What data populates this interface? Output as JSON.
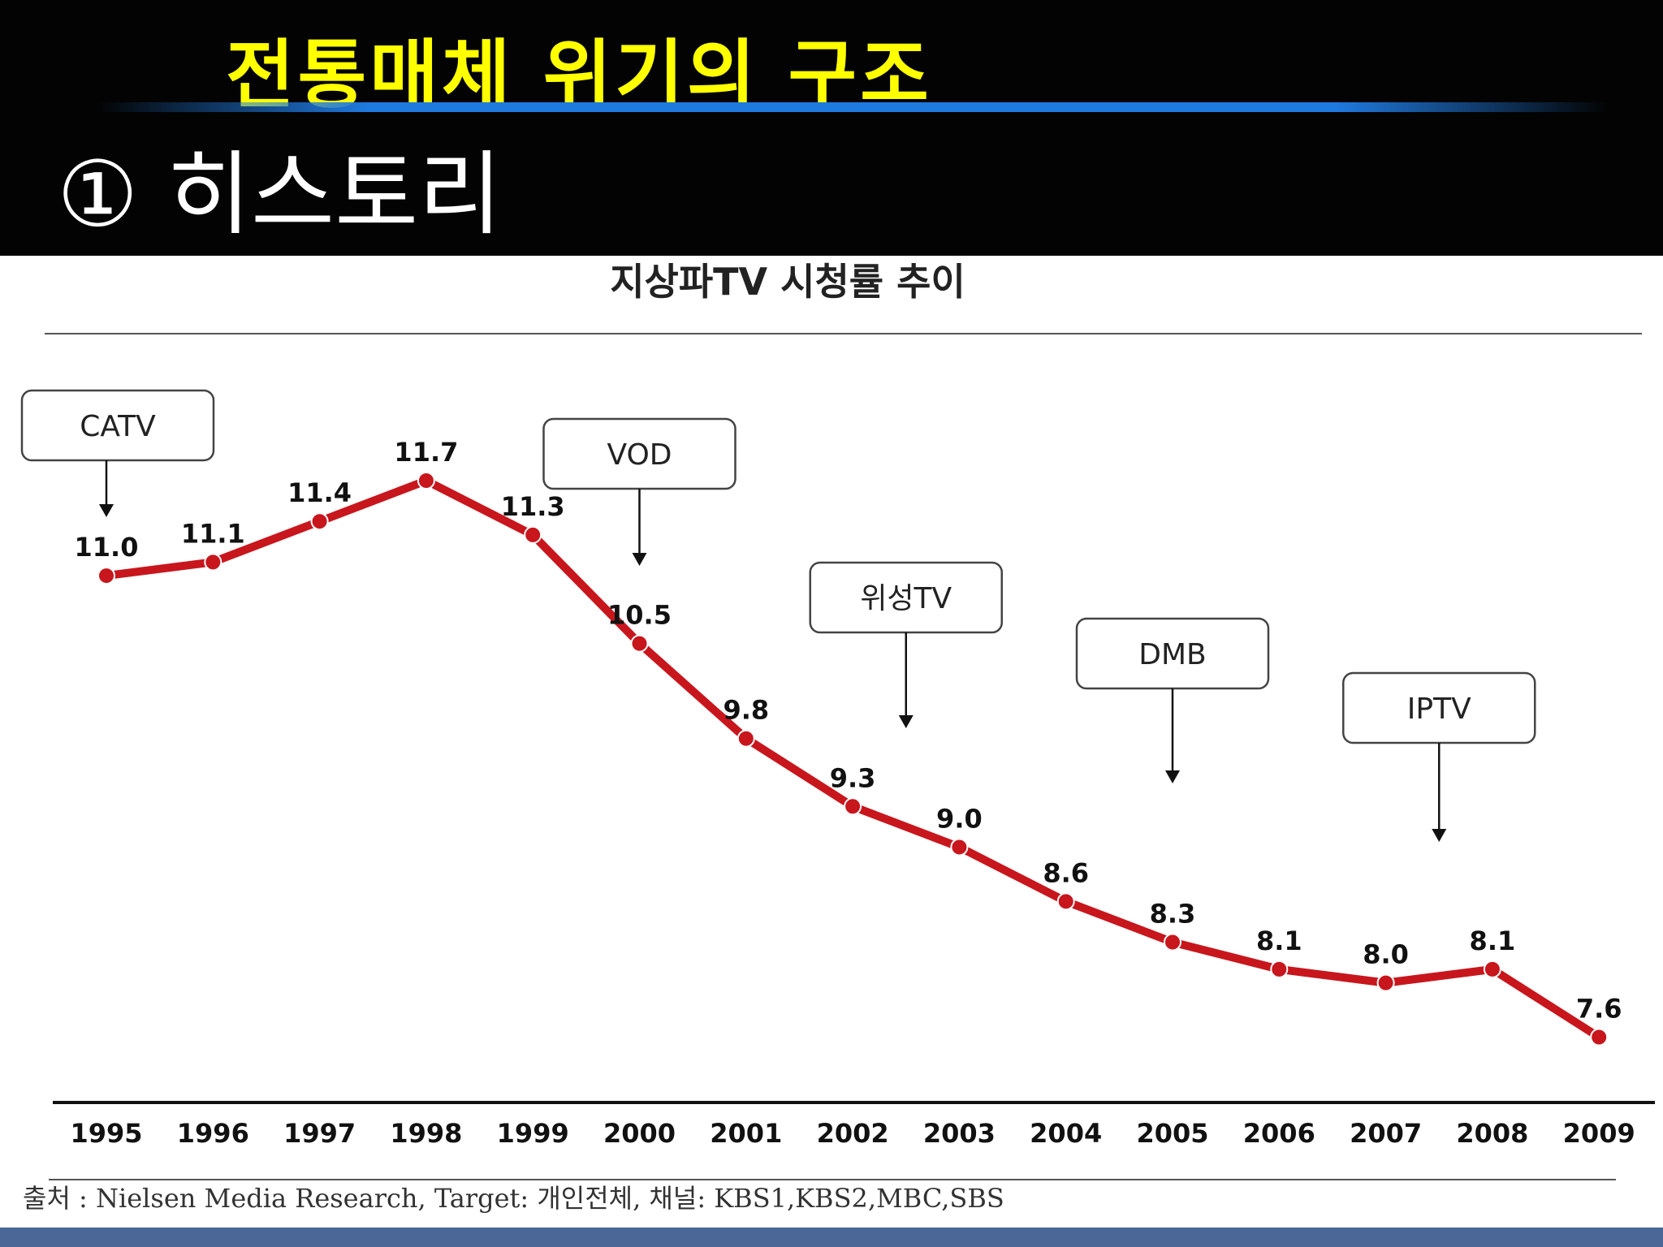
{
  "slide": {
    "title": "전통매체 위기의 구조",
    "section": "① 히스토리"
  },
  "colors": {
    "header_bg": "#030303",
    "title_yellow": "#ffff00",
    "accent_blue": "#1f7ae0",
    "line_red": "#c8161d",
    "footer_bar": "#4a6797"
  },
  "chart_data": {
    "type": "line",
    "title": "지상파TV 시청률 추이",
    "categories": [
      "1995",
      "1996",
      "1997",
      "1998",
      "1999",
      "2000",
      "2001",
      "2002",
      "2003",
      "2004",
      "2005",
      "2006",
      "2007",
      "2008",
      "2009"
    ],
    "series": [
      {
        "name": "지상파TV 시청률",
        "values": [
          11.0,
          11.1,
          11.4,
          11.7,
          11.3,
          10.5,
          9.8,
          9.3,
          9.0,
          8.6,
          8.3,
          8.1,
          8.0,
          8.1,
          7.6
        ]
      }
    ],
    "value_labels": [
      "11.0",
      "11.1",
      "11.4",
      "11.7",
      "11.3",
      "10.5",
      "9.8",
      "9.3",
      "9.0",
      "8.6",
      "8.3",
      "8.1",
      "8.0",
      "8.1",
      "7.6"
    ],
    "ylim": [
      6.0,
      12.4
    ],
    "annotations": [
      {
        "label": "CATV",
        "year": "1995"
      },
      {
        "label": "VOD",
        "year": "2000"
      },
      {
        "label": "위성TV",
        "year": "2002.5"
      },
      {
        "label": "DMB",
        "year": "2005"
      },
      {
        "label": "IPTV",
        "year": "2007.5"
      }
    ],
    "source": "출처 : Nielsen Media Research, Target: 개인전체, 채널: KBS1,KBS2,MBC,SBS"
  }
}
